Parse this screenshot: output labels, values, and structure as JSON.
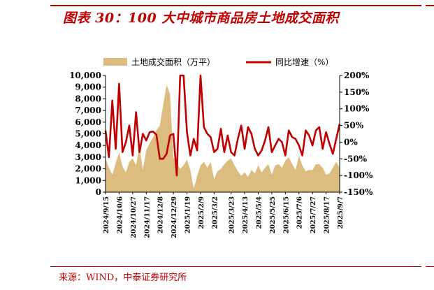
{
  "header": {
    "title": "图表 30：100 大中城市商品房土地成交面积"
  },
  "footer": {
    "source": "来源：WIND，中泰证券研究所"
  },
  "colors": {
    "accent": "#c00000",
    "area": "#ddbd7f",
    "line": "#c00000",
    "axis": "#000000"
  },
  "chart_data": {
    "type": "area+line",
    "legend_position": "top",
    "series": [
      {
        "name": "土地成交面积（万平）",
        "type": "area",
        "axis": "left",
        "values": [
          2900,
          2100,
          1500,
          2500,
          3400,
          2200,
          1700,
          2600,
          2900,
          2300,
          3900,
          1900,
          3600,
          4200,
          4700,
          5300,
          5700,
          7500,
          9200,
          8400,
          3000,
          2500,
          2000,
          2300,
          2800,
          1900,
          300,
          1400,
          2300,
          2600,
          2100,
          2600,
          1100,
          1800,
          2000,
          2400,
          2700,
          2900,
          2300,
          1800,
          1400,
          1700,
          1300,
          1900,
          1600,
          2300,
          1700,
          2100,
          2400,
          1500,
          2300,
          2400,
          2100,
          2700,
          3000,
          2400,
          1900,
          3100,
          2300,
          1800,
          1900,
          1900,
          2400,
          2400,
          2100,
          1500,
          1600,
          2100,
          2600,
          2100
        ]
      },
      {
        "name": "同比增速（%）",
        "type": "line",
        "axis": "right",
        "values": [
          35,
          -45,
          125,
          -20,
          175,
          -30,
          0,
          50,
          -40,
          90,
          -30,
          25,
          5,
          30,
          32,
          22,
          -50,
          -50,
          -35,
          20,
          25,
          -100,
          200,
          200,
          30,
          -40,
          10,
          -25,
          200,
          45,
          25,
          15,
          -30,
          -20,
          40,
          -30,
          20,
          -30,
          -40,
          10,
          50,
          -20,
          45,
          25,
          -20,
          -40,
          -25,
          5,
          45,
          -30,
          -10,
          10,
          0,
          -40,
          35,
          15,
          10,
          -10,
          -40,
          35,
          20,
          -10,
          35,
          45,
          -20,
          30,
          -5,
          -35,
          10,
          55
        ]
      }
    ],
    "y_left": {
      "min": 0,
      "max": 10000,
      "ticks": [
        "0",
        "1,000",
        "2,000",
        "3,000",
        "4,000",
        "5,000",
        "6,000",
        "7,000",
        "8,000",
        "9,000",
        "10,000"
      ]
    },
    "y_right": {
      "min": -150,
      "max": 200,
      "ticks": [
        "-150%",
        "-100%",
        "-50%",
        "0%",
        "50%",
        "100%",
        "150%",
        "200%"
      ]
    },
    "x_tick_labels": [
      "2024/9/15",
      "2024/10/6",
      "2024/10/27",
      "2024/11/17",
      "2024/12/8",
      "2024/12/29",
      "2025/1/19",
      "2025/2/9",
      "2025/3/2",
      "2025/3/23",
      "2025/4/13",
      "2025/5/4",
      "2025/5/25",
      "2025/6/15",
      "2025/7/6",
      "2025/7/27",
      "2025/8/17",
      "2025/9/7"
    ],
    "grid": false
  }
}
